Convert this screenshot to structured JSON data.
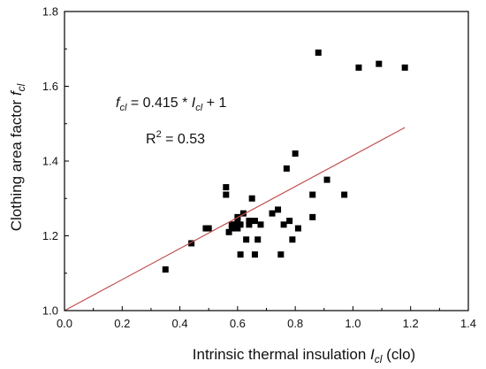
{
  "chart_data": {
    "type": "scatter",
    "title": "",
    "xlabel": {
      "main": "Intrinsic thermal insulation ",
      "symbol": "I",
      "subscript": "cl",
      "unit": " (clo)"
    },
    "ylabel": {
      "main": "Clothing area factor ",
      "symbol": "f",
      "subscript": "cl"
    },
    "xlim": [
      0.0,
      1.4
    ],
    "ylim": [
      1.0,
      1.8
    ],
    "xticks": [
      "0.0",
      "0.2",
      "0.4",
      "0.6",
      "0.8",
      "1.0",
      "1.2",
      "1.4"
    ],
    "yticks": [
      "1.0",
      "1.2",
      "1.4",
      "1.6",
      "1.8"
    ],
    "grid": false,
    "legend": "none",
    "colors": {
      "points": "#000000",
      "fit_line": "#c0504d",
      "axes": "#000000"
    },
    "annotations": {
      "equation": {
        "lhs_symbol": "f",
        "lhs_sub": "cl",
        "middle": " = 0.415 * ",
        "rhs_symbol": "I",
        "rhs_sub": "cl",
        "tail": " + 1"
      },
      "r2": {
        "label": "R",
        "exponent": "2",
        "value": " = 0.53"
      }
    },
    "fit_line": {
      "slope": 0.415,
      "intercept": 1.0,
      "x_range": [
        0.0,
        1.18
      ]
    },
    "points": [
      [
        0.35,
        1.11
      ],
      [
        0.44,
        1.18
      ],
      [
        0.49,
        1.22
      ],
      [
        0.5,
        1.22
      ],
      [
        0.56,
        1.33
      ],
      [
        0.56,
        1.31
      ],
      [
        0.57,
        1.21
      ],
      [
        0.58,
        1.22
      ],
      [
        0.58,
        1.23
      ],
      [
        0.59,
        1.23
      ],
      [
        0.6,
        1.24
      ],
      [
        0.6,
        1.22
      ],
      [
        0.6,
        1.25
      ],
      [
        0.61,
        1.15
      ],
      [
        0.61,
        1.23
      ],
      [
        0.62,
        1.26
      ],
      [
        0.63,
        1.19
      ],
      [
        0.64,
        1.24
      ],
      [
        0.64,
        1.23
      ],
      [
        0.65,
        1.3
      ],
      [
        0.66,
        1.15
      ],
      [
        0.66,
        1.24
      ],
      [
        0.67,
        1.19
      ],
      [
        0.68,
        1.23
      ],
      [
        0.72,
        1.26
      ],
      [
        0.74,
        1.27
      ],
      [
        0.75,
        1.15
      ],
      [
        0.76,
        1.23
      ],
      [
        0.77,
        1.38
      ],
      [
        0.78,
        1.24
      ],
      [
        0.79,
        1.19
      ],
      [
        0.8,
        1.42
      ],
      [
        0.81,
        1.22
      ],
      [
        0.86,
        1.25
      ],
      [
        0.86,
        1.31
      ],
      [
        0.88,
        1.69
      ],
      [
        0.91,
        1.35
      ],
      [
        0.97,
        1.31
      ],
      [
        1.02,
        1.65
      ],
      [
        1.09,
        1.66
      ],
      [
        1.18,
        1.65
      ]
    ]
  }
}
